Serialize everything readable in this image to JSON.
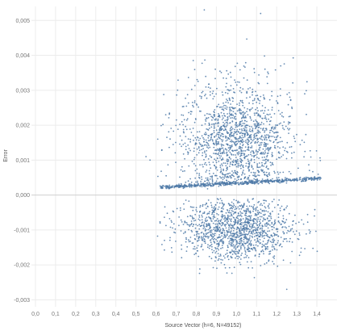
{
  "chart_data": {
    "type": "scatter",
    "title": "",
    "xlabel": "Source Vector (h=6, N=49152)",
    "ylabel": "Error",
    "xlim": [
      -0.02,
      1.5
    ],
    "ylim": [
      -0.0032,
      0.0054
    ],
    "x_ticks": [
      0.0,
      0.1,
      0.2,
      0.3,
      0.4,
      0.5,
      0.6,
      0.7,
      0.8,
      0.9,
      1.0,
      1.1,
      1.2,
      1.3,
      1.4
    ],
    "x_tick_labels": [
      "0,0",
      "0,1",
      "0,2",
      "0,3",
      "0,4",
      "0,5",
      "0,6",
      "0,7",
      "0,8",
      "0,9",
      "1,0",
      "1,1",
      "1,2",
      "1,3",
      "1,4"
    ],
    "y_ticks": [
      -0.003,
      -0.002,
      -0.001,
      0.0,
      0.001,
      0.002,
      0.003,
      0.004,
      0.005
    ],
    "y_tick_labels": [
      "-0,003",
      "-0,002",
      "-0,001",
      "0,000",
      "0,001",
      "0,002",
      "0,003",
      "0,004",
      "0,005"
    ],
    "grid": true,
    "point_count": 49152,
    "point_color": "#4e79a7",
    "clusters": [
      {
        "center_x": 1.0,
        "center_y": 0.0016,
        "spread_x": 0.14,
        "spread_y": 0.0008
      },
      {
        "center_x": 1.0,
        "center_y": -0.001,
        "spread_x": 0.14,
        "spread_y": 0.00045
      }
    ],
    "band": {
      "x_start": 0.62,
      "x_end": 1.42,
      "y_start": 0.00022,
      "y_end": 0.00048
    }
  }
}
